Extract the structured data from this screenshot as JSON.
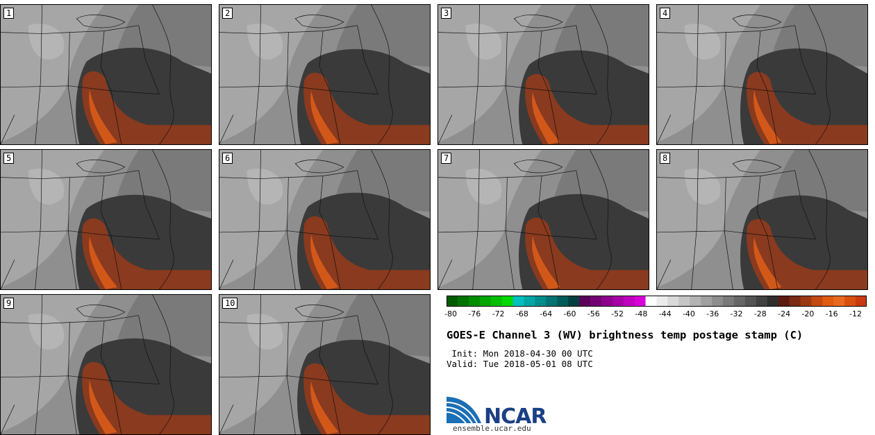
{
  "panels": [
    {
      "label": "1",
      "variant": 0
    },
    {
      "label": "2",
      "variant": 1
    },
    {
      "label": "3",
      "variant": 2
    },
    {
      "label": "4",
      "variant": 3
    },
    {
      "label": "5",
      "variant": 4
    },
    {
      "label": "6",
      "variant": 5
    },
    {
      "label": "7",
      "variant": 6
    },
    {
      "label": "8",
      "variant": 7
    },
    {
      "label": "9",
      "variant": 8
    },
    {
      "label": "10",
      "variant": 9
    }
  ],
  "colorbar": {
    "colors": [
      "#005a00",
      "#007300",
      "#008c00",
      "#00a600",
      "#00bf00",
      "#00d900",
      "#00bfbf",
      "#00a6a6",
      "#008c8c",
      "#007373",
      "#005a5a",
      "#004040",
      "#5a005a",
      "#730073",
      "#8c008c",
      "#a600a6",
      "#bf00bf",
      "#d900d9",
      "#ffffff",
      "#ececec",
      "#d9d9d9",
      "#c6c6c6",
      "#b3b3b3",
      "#a0a0a0",
      "#8d8d8d",
      "#7a7a7a",
      "#676767",
      "#545454",
      "#414141",
      "#2e2e2e",
      "#5a1a10",
      "#7a2a15",
      "#9a3a15",
      "#c24a10",
      "#e05a10",
      "#e86a20",
      "#d85010",
      "#c83a10"
    ],
    "ticks": [
      "-80",
      "-76",
      "-72",
      "-68",
      "-64",
      "-60",
      "-56",
      "-52",
      "-48",
      "-44",
      "-40",
      "-36",
      "-32",
      "-28",
      "-24",
      "-20",
      "-16",
      "-12"
    ]
  },
  "title": "GOES-E Channel 3 (WV) brightness temp postage stamp (C)",
  "init_line": " Init: Mon 2018-04-30 00 UTC",
  "valid_line": "Valid: Tue 2018-05-01 08 UTC",
  "logo": {
    "text": "NCAR",
    "url": "ensemble.ucar.edu"
  }
}
